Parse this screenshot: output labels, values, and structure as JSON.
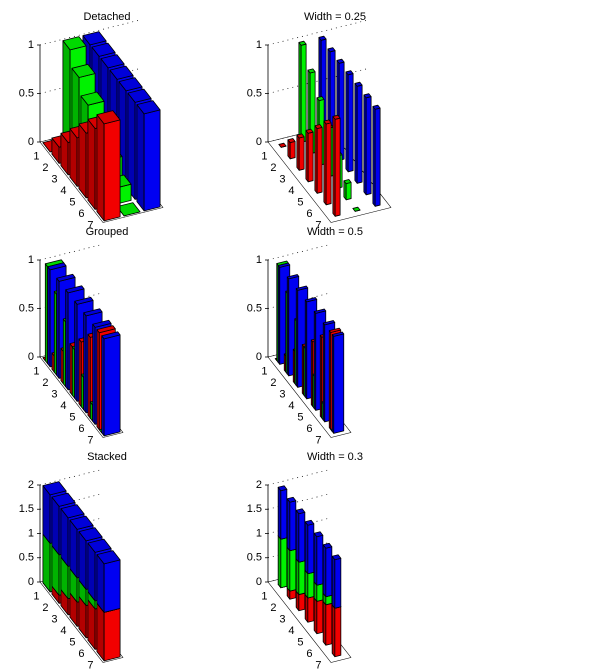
{
  "chart_data": [
    {
      "type": "bar3",
      "style": "detached",
      "width": 0.8,
      "title": "Detached",
      "categories": [
        "1",
        "2",
        "3",
        "4",
        "5",
        "6",
        "7"
      ],
      "series": [
        {
          "color": "#ff0000",
          "values": [
            0,
            0.1667,
            0.3333,
            0.5,
            0.6667,
            0.8333,
            1
          ]
        },
        {
          "color": "#00ff00",
          "values": [
            1,
            0.8333,
            0.6667,
            0.5,
            0.3333,
            0.1667,
            0
          ]
        },
        {
          "color": "#0000ff",
          "values": [
            1,
            1,
            1,
            1,
            1,
            1,
            1
          ]
        }
      ],
      "zlim": [
        0,
        1
      ],
      "zticks": [
        0,
        0.5,
        1
      ]
    },
    {
      "type": "bar3",
      "style": "detached",
      "width": 0.25,
      "title": "Width = 0.25",
      "categories": [
        "1",
        "2",
        "3",
        "4",
        "5",
        "6",
        "7"
      ],
      "series": [
        {
          "color": "#ff0000",
          "values": [
            0,
            0.1667,
            0.3333,
            0.5,
            0.6667,
            0.8333,
            1
          ]
        },
        {
          "color": "#00ff00",
          "values": [
            1,
            0.8333,
            0.6667,
            0.5,
            0.3333,
            0.1667,
            0
          ]
        },
        {
          "color": "#0000ff",
          "values": [
            1,
            1,
            1,
            1,
            1,
            1,
            1
          ]
        }
      ],
      "zlim": [
        0,
        1
      ],
      "zticks": [
        0,
        0.5,
        1
      ]
    },
    {
      "type": "bar3",
      "style": "grouped",
      "width": 0.8,
      "title": "Grouped",
      "categories": [
        "1",
        "2",
        "3",
        "4",
        "5",
        "6",
        "7"
      ],
      "series": [
        {
          "color": "#ff0000",
          "values": [
            0,
            0.1667,
            0.3333,
            0.5,
            0.6667,
            0.8333,
            1
          ]
        },
        {
          "color": "#00ff00",
          "values": [
            1,
            0.8333,
            0.6667,
            0.5,
            0.3333,
            0.1667,
            0
          ]
        },
        {
          "color": "#0000ff",
          "values": [
            1,
            1,
            1,
            1,
            1,
            1,
            1
          ]
        }
      ],
      "zlim": [
        0,
        1
      ],
      "zticks": [
        0,
        0.5,
        1
      ]
    },
    {
      "type": "bar3",
      "style": "grouped",
      "width": 0.5,
      "title": "Width = 0.5",
      "categories": [
        "1",
        "2",
        "3",
        "4",
        "5",
        "6",
        "7"
      ],
      "series": [
        {
          "color": "#ff0000",
          "values": [
            0,
            0.1667,
            0.3333,
            0.5,
            0.6667,
            0.8333,
            1
          ]
        },
        {
          "color": "#00ff00",
          "values": [
            1,
            0.8333,
            0.6667,
            0.5,
            0.3333,
            0.1667,
            0
          ]
        },
        {
          "color": "#0000ff",
          "values": [
            1,
            1,
            1,
            1,
            1,
            1,
            1
          ]
        }
      ],
      "zlim": [
        0,
        1
      ],
      "zticks": [
        0,
        0.5,
        1
      ]
    },
    {
      "type": "bar3",
      "style": "stacked",
      "width": 0.8,
      "title": "Stacked",
      "categories": [
        "1",
        "2",
        "3",
        "4",
        "5",
        "6",
        "7"
      ],
      "series": [
        {
          "color": "#ff0000",
          "values": [
            0,
            0.1667,
            0.3333,
            0.5,
            0.6667,
            0.8333,
            1
          ]
        },
        {
          "color": "#00ff00",
          "values": [
            1,
            0.8333,
            0.6667,
            0.5,
            0.3333,
            0.1667,
            0
          ]
        },
        {
          "color": "#0000ff",
          "values": [
            1,
            1,
            1,
            1,
            1,
            1,
            1
          ]
        }
      ],
      "zlim": [
        0,
        2
      ],
      "zticks": [
        0,
        0.5,
        1,
        1.5,
        2
      ]
    },
    {
      "type": "bar3",
      "style": "stacked",
      "width": 0.3,
      "title": "Width = 0.3",
      "categories": [
        "1",
        "2",
        "3",
        "4",
        "5",
        "6",
        "7"
      ],
      "series": [
        {
          "color": "#ff0000",
          "values": [
            0,
            0.1667,
            0.3333,
            0.5,
            0.6667,
            0.8333,
            1
          ]
        },
        {
          "color": "#00ff00",
          "values": [
            1,
            0.8333,
            0.6667,
            0.5,
            0.3333,
            0.1667,
            0
          ]
        },
        {
          "color": "#0000ff",
          "values": [
            1,
            1,
            1,
            1,
            1,
            1,
            1
          ]
        }
      ],
      "zlim": [
        0,
        2
      ],
      "zticks": [
        0,
        0.5,
        1,
        1.5,
        2
      ]
    }
  ]
}
